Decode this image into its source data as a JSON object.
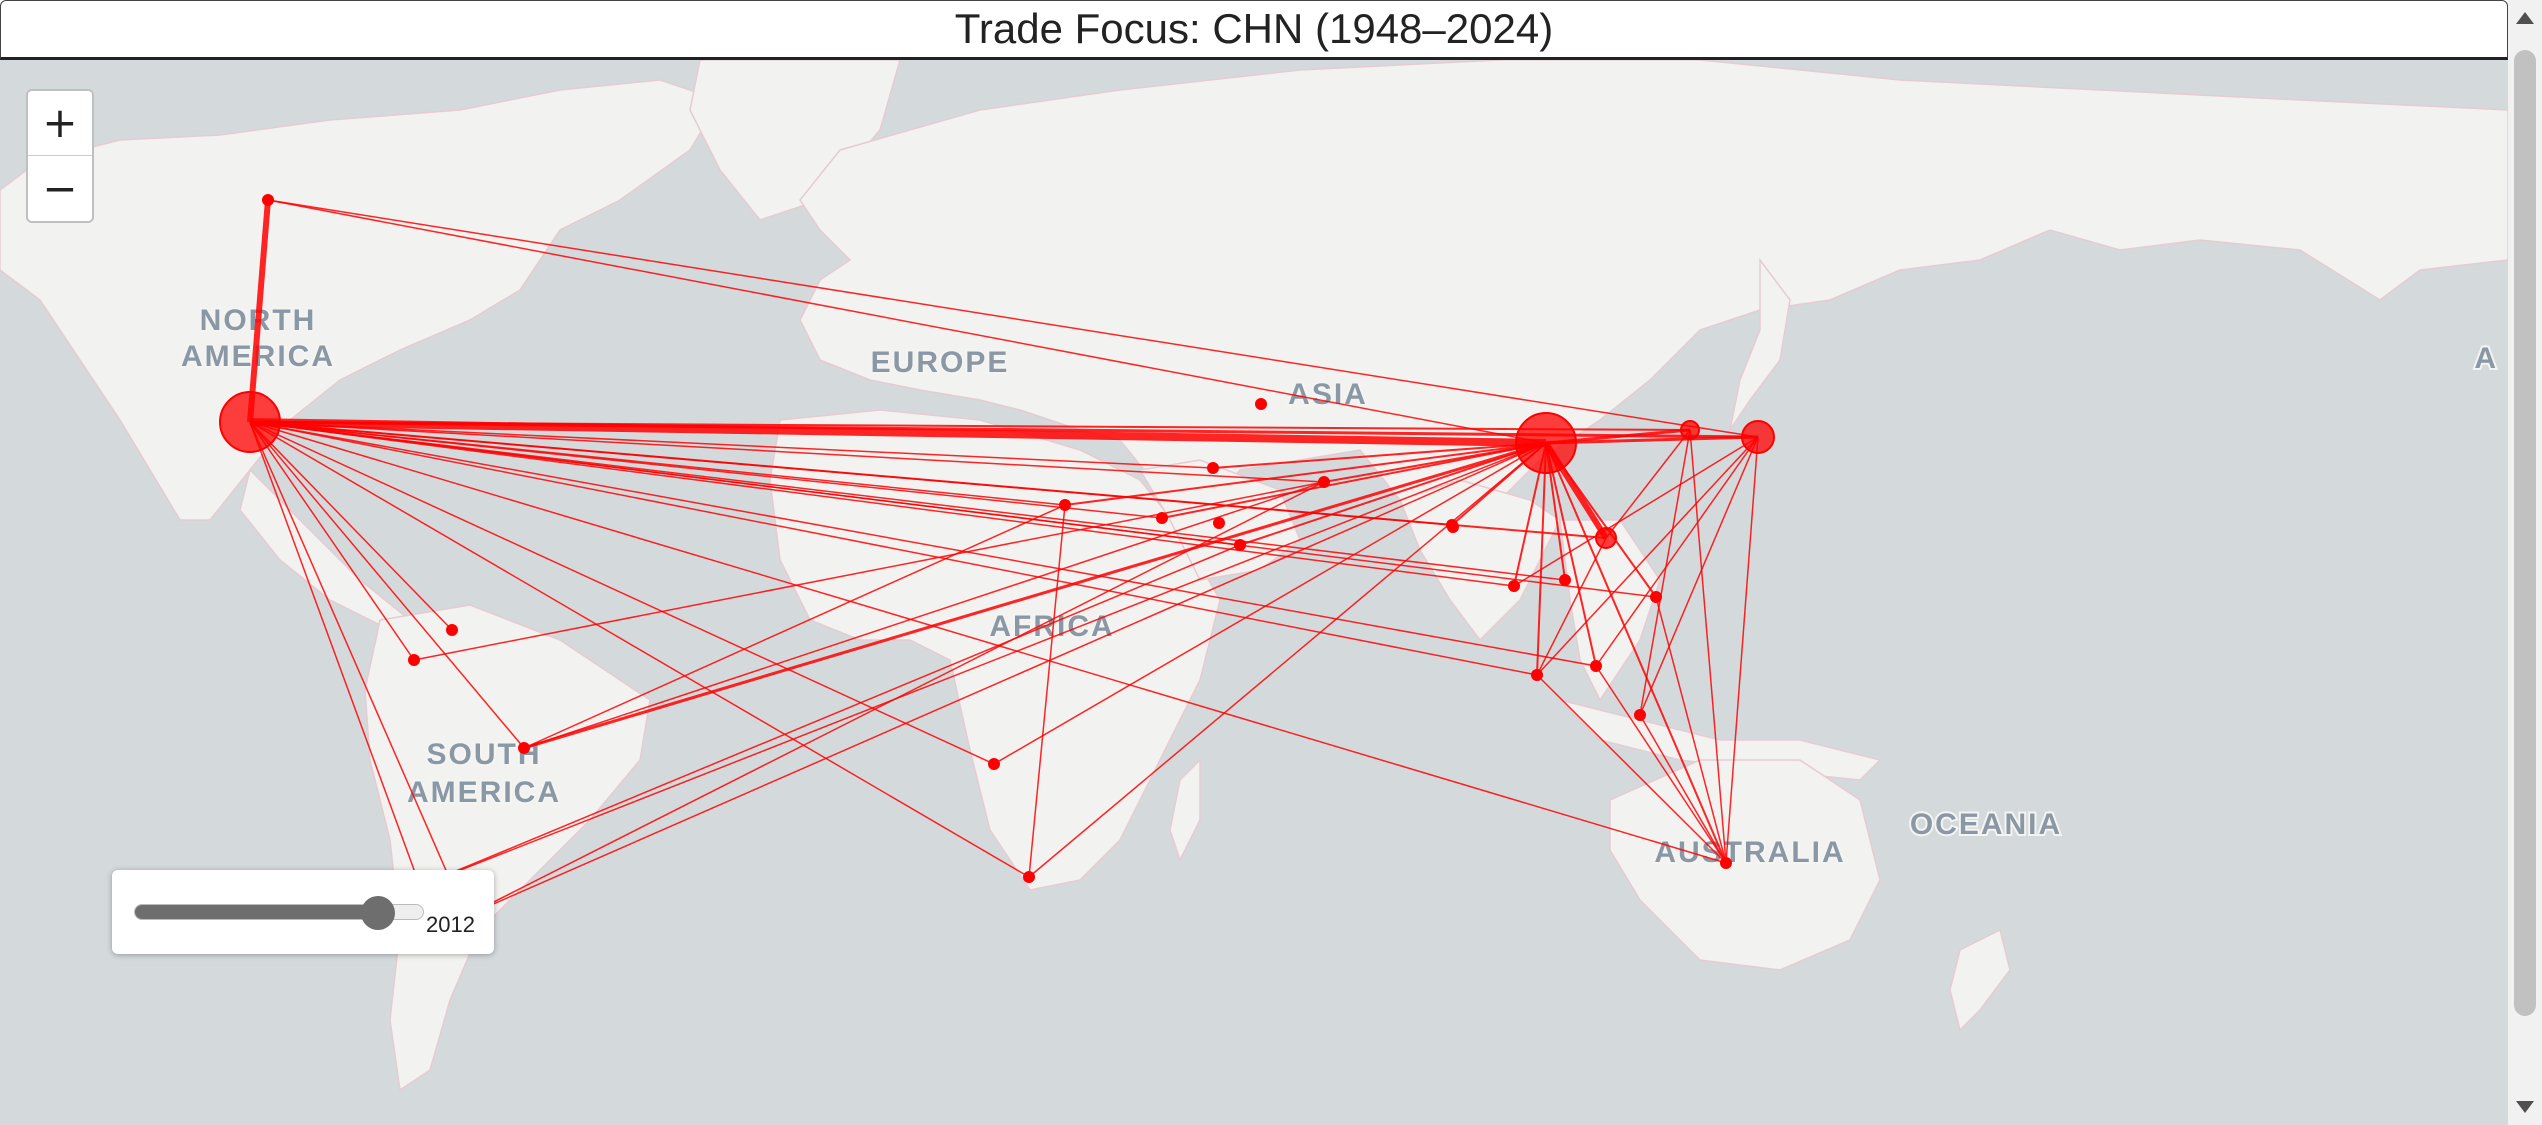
{
  "title": "Trade Focus: CHN (1948–2024)",
  "zoom": {
    "in_label": "+",
    "out_label": "−"
  },
  "slider": {
    "min": 1948,
    "max": 2024,
    "value": 2012,
    "value_label": "2012"
  },
  "colors": {
    "ocean": "#d4d9dc",
    "land": "#f2f2f0",
    "border": "#e8c7d0",
    "flow": "#ff0000",
    "label": "#8a98a5"
  },
  "region_labels": {
    "north_america": [
      "NORTH",
      "AMERICA"
    ],
    "south_america": [
      "SOUTH",
      "AMERICA"
    ],
    "europe": "EUROPE",
    "asia": "ASIA",
    "africa": "AFRICA",
    "australia": "AUSTRALIA",
    "oceania": "OCEANIA",
    "edge_fragment": "A"
  }
}
